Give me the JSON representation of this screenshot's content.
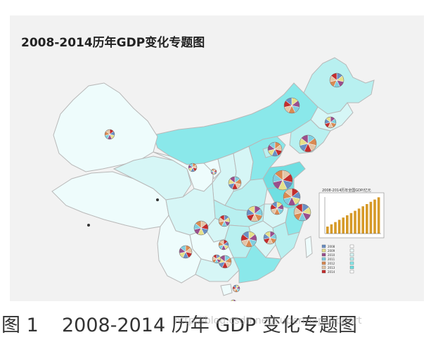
{
  "map": {
    "title": "2008-2014历年GDP变化专题图",
    "colors": {
      "background": "#f2f2f2",
      "border": "#b8b8b8",
      "low": "#eefcfc",
      "mid_low": "#d6f6f6",
      "mid": "#b8f0f0",
      "high": "#8ae8ea",
      "highest": "#6fdfe2"
    },
    "pie_colors": [
      "#6a8fc4",
      "#e6e08a",
      "#9a4f8c",
      "#7fcfe0",
      "#d98a52",
      "#e3c6a8",
      "#c42d2d"
    ]
  },
  "inset_chart": {
    "title": "2008-2014历年全国GDP/亿元",
    "bar_color": "#d69a28",
    "bar_count": 14
  },
  "legend": {
    "years": [
      "2008",
      "2009",
      "2010",
      "2011",
      "2012",
      "2013",
      "2014"
    ]
  },
  "caption": {
    "figure": "图 1",
    "text": "2008-2014 历年 GDP 变化专题图",
    "watermark": "http://blog.csdn.net/supermapsupport"
  }
}
